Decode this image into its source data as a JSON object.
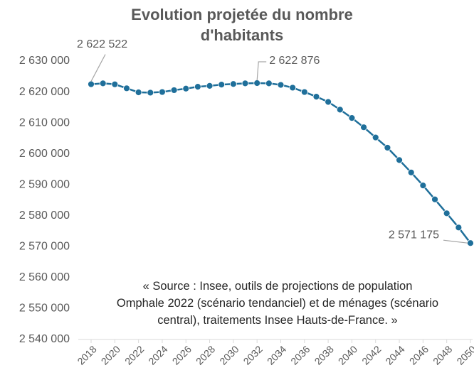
{
  "chart_data": {
    "type": "line",
    "title": "Evolution projetée du nombre d'habitants",
    "annotation": [
      "« Source : Insee, outils de projections de population",
      "Omphale 2022 (scénario tendanciel) et de ménages (scénario",
      "central), traitements Insee Hauts-de-France. »"
    ],
    "x": [
      2018,
      2019,
      2020,
      2021,
      2022,
      2023,
      2024,
      2025,
      2026,
      2027,
      2028,
      2029,
      2030,
      2031,
      2032,
      2033,
      2034,
      2035,
      2036,
      2037,
      2038,
      2039,
      2040,
      2041,
      2042,
      2043,
      2044,
      2045,
      2046,
      2047,
      2048,
      2049,
      2050
    ],
    "series": [
      {
        "color": "#1f6f9a",
        "values": [
          2622522,
          2622800,
          2622500,
          2621200,
          2619900,
          2619800,
          2620000,
          2620600,
          2621100,
          2621700,
          2622000,
          2622400,
          2622600,
          2622800,
          2622876,
          2622800,
          2622300,
          2621400,
          2620000,
          2618500,
          2616800,
          2614300,
          2611600,
          2608600,
          2605300,
          2602000,
          2598000,
          2594000,
          2589800,
          2585300,
          2580800,
          2576200,
          2571175
        ],
        "value_labels": [
          "2 622 522",
          null,
          null,
          null,
          null,
          null,
          null,
          null,
          null,
          null,
          null,
          null,
          null,
          null,
          "2 622 876",
          null,
          null,
          null,
          null,
          null,
          null,
          null,
          null,
          null,
          null,
          null,
          null,
          null,
          null,
          null,
          null,
          null,
          "2 571 175"
        ]
      }
    ],
    "xlim": [
      2018,
      2050
    ],
    "xticks": [
      2018,
      2020,
      2022,
      2024,
      2026,
      2028,
      2030,
      2032,
      2034,
      2036,
      2038,
      2040,
      2042,
      2044,
      2046,
      2048,
      2050
    ],
    "ylim": [
      2540000,
      2630000
    ],
    "yticks": [
      {
        "value": 2540000,
        "label": "2 540 000"
      },
      {
        "value": 2550000,
        "label": "2 550 000"
      },
      {
        "value": 2560000,
        "label": "2 560 000"
      },
      {
        "value": 2570000,
        "label": "2 570 000"
      },
      {
        "value": 2580000,
        "label": "2 580 000"
      },
      {
        "value": 2590000,
        "label": "2 590 000"
      },
      {
        "value": 2600000,
        "label": "2 600 000"
      },
      {
        "value": 2610000,
        "label": "2 610 000"
      },
      {
        "value": 2620000,
        "label": "2 620 000"
      },
      {
        "value": 2630000,
        "label": "2 630 000"
      }
    ],
    "grid": false
  }
}
